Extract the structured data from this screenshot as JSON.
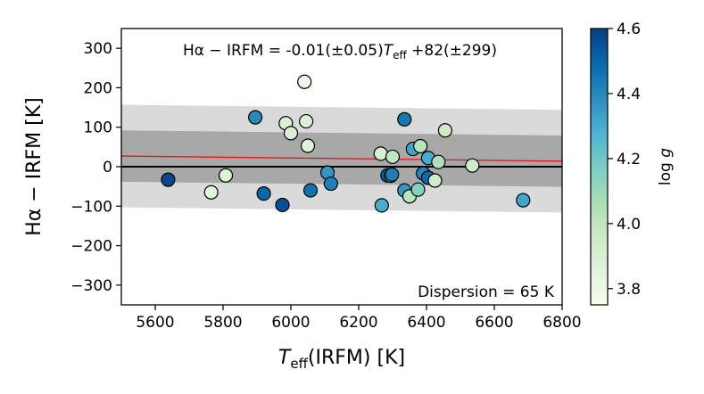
{
  "chart_data": {
    "type": "scatter",
    "xlabel_main": "T",
    "xlabel_sub": "eff",
    "xlabel_rest": "(IRFM)  [K]",
    "ylabel": "Hα − IRFM  [K]",
    "xlim": [
      5500,
      6800
    ],
    "ylim": [
      -350,
      350
    ],
    "xticks": [
      5600,
      5800,
      6000,
      6200,
      6400,
      6600,
      6800
    ],
    "yticks": [
      -300,
      -200,
      -100,
      0,
      100,
      200,
      300
    ],
    "ytick_labels": [
      "−300",
      "−200",
      "−100",
      "0",
      "100",
      "200",
      "300"
    ],
    "fit_annotation": {
      "prefix": "Hα − IRFM = -0.01(±0.05)",
      "var": "T",
      "var_sub": "eff",
      "suffix": " +82(±299)"
    },
    "dispersion_label": "Dispersion = 65 K",
    "fit_line": {
      "slope": -0.01,
      "intercept": 82,
      "color": "#e8131b"
    },
    "zero_line_color": "#000000",
    "bands": [
      {
        "name": "outer",
        "offset": 130,
        "color": "#dadada"
      },
      {
        "name": "inner",
        "offset": 65,
        "color": "#a8a8a8"
      }
    ],
    "colorbar": {
      "label": "log g",
      "range": [
        3.75,
        4.6
      ],
      "ticks": [
        3.8,
        4.0,
        4.2,
        4.4,
        4.6
      ],
      "tick_labels": [
        "3.8",
        "4.0",
        "4.2",
        "4.4",
        "4.6"
      ],
      "cmap": [
        "#f7fcf0",
        "#e0f3db",
        "#ccebc5",
        "#a8ddb5",
        "#7bccc4",
        "#4eb3d3",
        "#2b8cbe",
        "#0868ac",
        "#084081"
      ]
    },
    "points": [
      {
        "x": 5638,
        "y": -33,
        "logg": 4.58
      },
      {
        "x": 5765,
        "y": -65,
        "logg": 3.85
      },
      {
        "x": 5808,
        "y": -22,
        "logg": 3.88
      },
      {
        "x": 5895,
        "y": 125,
        "logg": 4.4
      },
      {
        "x": 5920,
        "y": -68,
        "logg": 4.5
      },
      {
        "x": 5975,
        "y": -97,
        "logg": 4.56
      },
      {
        "x": 5985,
        "y": 110,
        "logg": 3.88
      },
      {
        "x": 6000,
        "y": 85,
        "logg": 3.9
      },
      {
        "x": 6040,
        "y": 215,
        "logg": 3.8
      },
      {
        "x": 6045,
        "y": 115,
        "logg": 3.88
      },
      {
        "x": 6050,
        "y": 53,
        "logg": 3.86
      },
      {
        "x": 6058,
        "y": -60,
        "logg": 4.46
      },
      {
        "x": 6108,
        "y": -15,
        "logg": 4.36
      },
      {
        "x": 6118,
        "y": -43,
        "logg": 4.42
      },
      {
        "x": 6265,
        "y": 33,
        "logg": 3.9
      },
      {
        "x": 6268,
        "y": -98,
        "logg": 4.3
      },
      {
        "x": 6285,
        "y": -22,
        "logg": 4.5
      },
      {
        "x": 6295,
        "y": -23,
        "logg": 4.02
      },
      {
        "x": 6298,
        "y": -20,
        "logg": 4.43
      },
      {
        "x": 6300,
        "y": 25,
        "logg": 4.0
      },
      {
        "x": 6335,
        "y": 120,
        "logg": 4.45
      },
      {
        "x": 6335,
        "y": -60,
        "logg": 4.36
      },
      {
        "x": 6350,
        "y": -75,
        "logg": 4.02
      },
      {
        "x": 6360,
        "y": 45,
        "logg": 4.32
      },
      {
        "x": 6375,
        "y": -58,
        "logg": 4.15
      },
      {
        "x": 6382,
        "y": 52,
        "logg": 4.02
      },
      {
        "x": 6390,
        "y": -17,
        "logg": 4.4
      },
      {
        "x": 6405,
        "y": -28,
        "logg": 4.48
      },
      {
        "x": 6405,
        "y": 22,
        "logg": 4.3
      },
      {
        "x": 6425,
        "y": -35,
        "logg": 3.95
      },
      {
        "x": 6435,
        "y": 12,
        "logg": 4.05
      },
      {
        "x": 6455,
        "y": 92,
        "logg": 3.95
      },
      {
        "x": 6535,
        "y": 3,
        "logg": 3.95
      },
      {
        "x": 6685,
        "y": -85,
        "logg": 4.32
      }
    ]
  }
}
